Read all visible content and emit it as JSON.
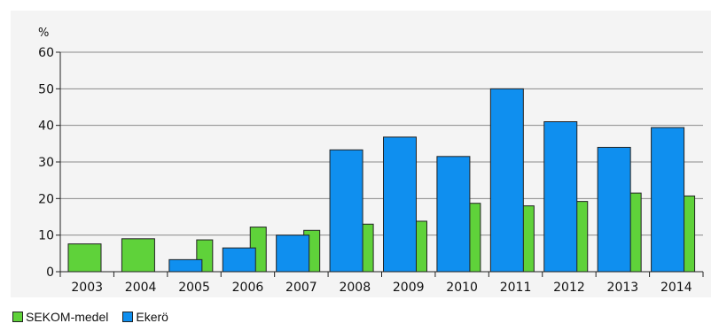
{
  "chart_data": {
    "type": "bar",
    "ylabel": "%",
    "ylim": [
      0,
      60
    ],
    "yticks": [
      0,
      10,
      20,
      30,
      40,
      50,
      60
    ],
    "grid": true,
    "categories": [
      "2003",
      "2004",
      "2005",
      "2006",
      "2007",
      "2008",
      "2009",
      "2010",
      "2011",
      "2012",
      "2013",
      "2014"
    ],
    "series": [
      {
        "name": "SEKOM-medel",
        "color": "#5fd23a",
        "values": [
          7.6,
          9.0,
          8.7,
          12.2,
          11.3,
          13.0,
          13.8,
          18.7,
          18.0,
          19.2,
          21.5,
          20.7
        ]
      },
      {
        "name": "Ekerö",
        "color": "#0f8fef",
        "values": [
          null,
          null,
          3.3,
          6.5,
          10.0,
          33.3,
          36.8,
          31.5,
          50.0,
          41.0,
          34.0,
          39.4
        ]
      }
    ],
    "legend_position": "bottom-left"
  }
}
